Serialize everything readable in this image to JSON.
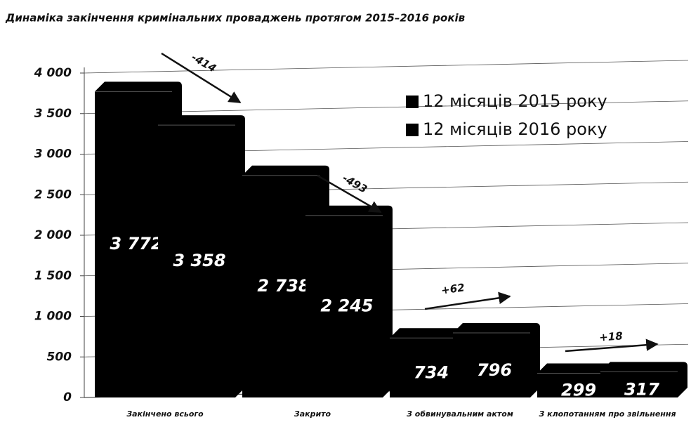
{
  "chart_data": {
    "type": "bar",
    "title": "Динаміка закінчення кримінальних проваджень протягом 2015–2016 років",
    "categories": [
      "Закінчено всього",
      "Закрито",
      "З обвинувальним актом",
      "З клопотанням про звільнення"
    ],
    "series": [
      {
        "name": "12 місяців 2015 року",
        "color": "#000000",
        "values": [
          3772,
          2738,
          734,
          299
        ],
        "value_labels": [
          "3 772",
          "2 738",
          "734",
          "299"
        ]
      },
      {
        "name": "12 місяців 2016 року",
        "color": "#000000",
        "values": [
          3358,
          2245,
          796,
          317
        ],
        "value_labels": [
          "3 358",
          "2 245",
          "796",
          "317"
        ]
      }
    ],
    "annotations": [
      "-414",
      "-493",
      "+62",
      "+18"
    ],
    "ylim": [
      0,
      4000
    ],
    "yticks": [
      0,
      500,
      {
        "value": 1000,
        "label": "1 000"
      },
      {
        "value": 1500,
        "label": "1 500"
      },
      {
        "value": 2000,
        "label": "2 000"
      },
      {
        "value": 2500,
        "label": "2 500"
      },
      {
        "value": 3000,
        "label": "3 000"
      },
      {
        "value": 3500,
        "label": "3 500"
      },
      {
        "value": 4000,
        "label": "4 000"
      }
    ],
    "grid": true
  }
}
